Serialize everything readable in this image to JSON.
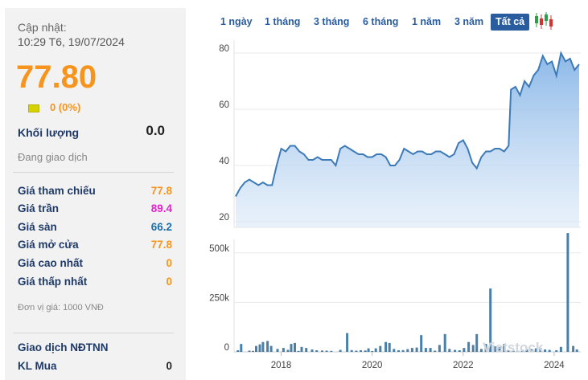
{
  "header": {
    "updated_label": "Cập nhật:",
    "updated_time": "10:29 T6, 19/07/2024"
  },
  "quote": {
    "price": "77.80",
    "change": "0 (0%)",
    "volume_label": "Khối lượng",
    "volume": "0.0",
    "status": "Đang giao dịch"
  },
  "details": [
    {
      "label": "Giá tham chiếu",
      "value": "77.8",
      "color": "#f7941d"
    },
    {
      "label": "Giá trần",
      "value": "89.4",
      "color": "#e81fd0"
    },
    {
      "label": "Giá sàn",
      "value": "66.2",
      "color": "#1b6fa8"
    },
    {
      "label": "Giá mở cửa",
      "value": "77.8",
      "color": "#f7941d"
    },
    {
      "label": "Giá cao nhất",
      "value": "0",
      "color": "#f7941d"
    },
    {
      "label": "Giá thấp nhất",
      "value": "0",
      "color": "#f7941d"
    }
  ],
  "unit_note": "Đơn vị giá: 1000 VNĐ",
  "foreign": {
    "title": "Giao dịch NĐTNN",
    "buy_label": "KL Mua",
    "buy_value": "0"
  },
  "tabs": [
    "1 ngày",
    "1 tháng",
    "3 tháng",
    "6 tháng",
    "1 năm",
    "3 năm",
    "Tất cả"
  ],
  "active_tab": "Tất cả",
  "colors": {
    "accent": "#2a5d9f",
    "price": "#f7941d",
    "line": "#3d7ab8",
    "area": "#9fc3ea",
    "volume": "#4a7fa8"
  },
  "watermark": "Vietstock",
  "chart_data": [
    {
      "type": "area",
      "title": "",
      "y_ticks": [
        20,
        40,
        60,
        80
      ],
      "ylim": [
        18,
        84
      ],
      "x_ticks": [
        "2018",
        "2020",
        "2022",
        "2024"
      ],
      "x_range": [
        2017.0,
        2024.55
      ],
      "series": [
        {
          "x": [
            2017.0,
            2017.1,
            2017.2,
            2017.3,
            2017.4,
            2017.5,
            2017.6,
            2017.7,
            2017.8,
            2017.9,
            2018.0,
            2018.1,
            2018.2,
            2018.3,
            2018.4,
            2018.5,
            2018.6,
            2018.7,
            2018.8,
            2018.9,
            2019.0,
            2019.1,
            2019.2,
            2019.3,
            2019.4,
            2019.5,
            2019.6,
            2019.7,
            2019.8,
            2019.9,
            2020.0,
            2020.1,
            2020.2,
            2020.3,
            2020.4,
            2020.5,
            2020.6,
            2020.7,
            2020.8,
            2020.9,
            2021.0,
            2021.1,
            2021.2,
            2021.3,
            2021.4,
            2021.5,
            2021.6,
            2021.7,
            2021.8,
            2021.9,
            2022.0,
            2022.1,
            2022.2,
            2022.3,
            2022.4,
            2022.5,
            2022.6,
            2022.7,
            2022.8,
            2022.9,
            2023.0,
            2023.05,
            2023.15,
            2023.25,
            2023.35,
            2023.45,
            2023.55,
            2023.65,
            2023.75,
            2023.85,
            2023.95,
            2024.05,
            2024.15,
            2024.25,
            2024.35,
            2024.45,
            2024.55
          ],
          "values": [
            29,
            32,
            34,
            35,
            34,
            33,
            34,
            33,
            33,
            40,
            46,
            45,
            47,
            47,
            45,
            44,
            42,
            42,
            43,
            42,
            42,
            42,
            40,
            46,
            47,
            46,
            45,
            44,
            44,
            43,
            43,
            44,
            44,
            43,
            40,
            40,
            42,
            46,
            45,
            44,
            45,
            45,
            44,
            44,
            45,
            45,
            44,
            43,
            44,
            48,
            49,
            46,
            41,
            39,
            43,
            45,
            45,
            46,
            46,
            45,
            47,
            67,
            68,
            65,
            70,
            68,
            72,
            74,
            79,
            76,
            77,
            72,
            80,
            77,
            78,
            74,
            76
          ]
        }
      ]
    },
    {
      "type": "bar",
      "title": "",
      "y_ticks": [
        "0",
        "250k",
        "500k"
      ],
      "y_tick_values": [
        0,
        250000,
        500000
      ],
      "ylim": [
        0,
        560000
      ],
      "x_ticks": [
        "2018",
        "2020",
        "2022",
        "2024"
      ],
      "series": [
        {
          "x": [
            2017.05,
            2017.12,
            2017.3,
            2017.38,
            2017.45,
            2017.53,
            2017.6,
            2017.7,
            2017.78,
            2017.92,
            2018.05,
            2018.15,
            2018.22,
            2018.3,
            2018.38,
            2018.45,
            2018.55,
            2018.68,
            2018.78,
            2018.9,
            2019.0,
            2019.1,
            2019.3,
            2019.45,
            2019.55,
            2019.65,
            2019.75,
            2019.85,
            2019.92,
            2020.0,
            2020.08,
            2020.18,
            2020.3,
            2020.38,
            2020.48,
            2020.58,
            2020.68,
            2020.78,
            2020.88,
            2020.98,
            2021.08,
            2021.18,
            2021.28,
            2021.38,
            2021.48,
            2021.6,
            2021.7,
            2021.82,
            2021.92,
            2022.02,
            2022.12,
            2022.22,
            2022.3,
            2022.4,
            2022.5,
            2022.6,
            2022.7,
            2022.8,
            2022.9,
            2023.0,
            2023.1,
            2023.2,
            2023.3,
            2023.4,
            2023.5,
            2023.6,
            2023.7,
            2023.8,
            2023.9,
            2024.05,
            2024.15,
            2024.3,
            2024.42,
            2024.5
          ],
          "values": [
            8000,
            40000,
            6000,
            5000,
            30000,
            38000,
            50000,
            55000,
            30000,
            15000,
            20000,
            10000,
            40000,
            45000,
            5000,
            25000,
            20000,
            12000,
            8000,
            7000,
            6000,
            5000,
            10000,
            95000,
            9000,
            6000,
            8000,
            7000,
            18000,
            4000,
            18000,
            30000,
            50000,
            45000,
            15000,
            8000,
            9000,
            14000,
            20000,
            22000,
            85000,
            20000,
            20000,
            6000,
            35000,
            90000,
            15000,
            10000,
            8000,
            20000,
            50000,
            35000,
            90000,
            15000,
            40000,
            320000,
            28000,
            25000,
            40000,
            10000,
            8000,
            6000,
            10000,
            12000,
            14000,
            18000,
            20000,
            12000,
            10000,
            8000,
            25000,
            600000,
            30000,
            12000
          ]
        }
      ]
    }
  ]
}
